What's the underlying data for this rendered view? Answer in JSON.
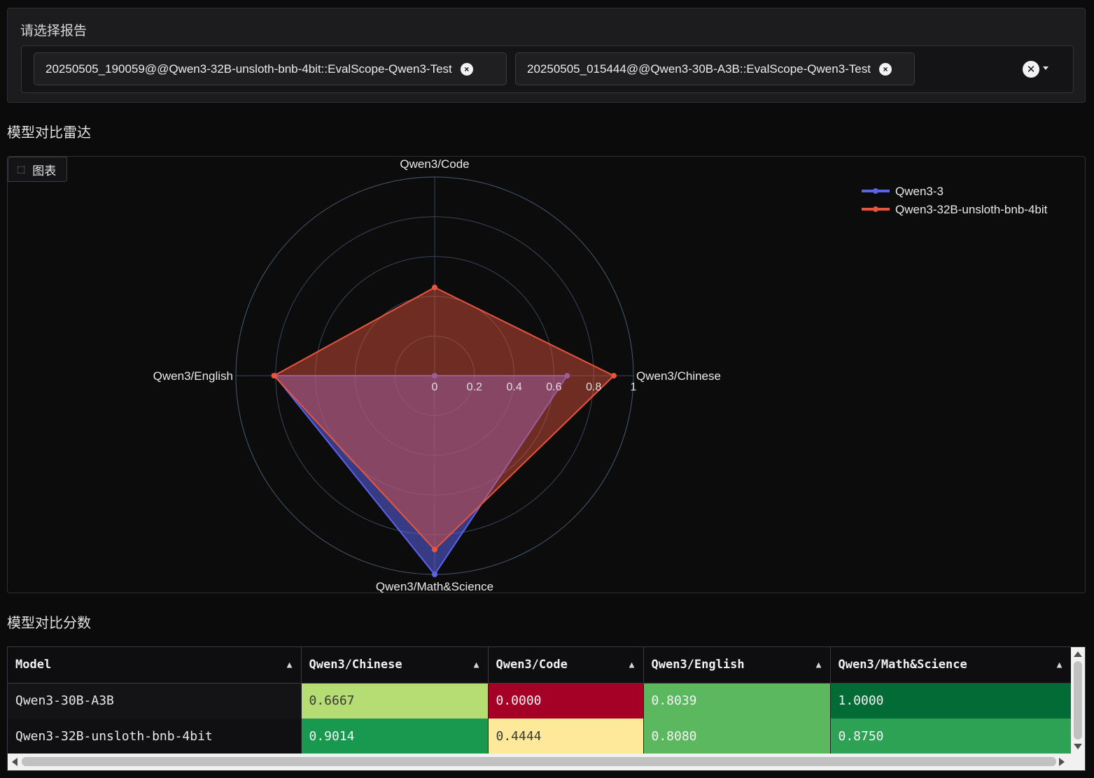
{
  "report_selector": {
    "label": "请选择报告",
    "selected": [
      "20250505_190059@@Qwen3-32B-unsloth-bnb-4bit::EvalScope-Qwen3-Test",
      "20250505_015444@@Qwen3-30B-A3B::EvalScope-Qwen3-Test"
    ],
    "remove_glyph": "×",
    "clear_glyph": "✕"
  },
  "radar_section": {
    "title": "模型对比雷达",
    "tab_label": "图表",
    "tab_icon": "chart-icon"
  },
  "table_section": {
    "title": "模型对比分数",
    "sort_glyph": "▲"
  },
  "chart_data": {
    "type": "radar",
    "axes": [
      "Qwen3/Chinese",
      "Qwen3/Code",
      "Qwen3/English",
      "Qwen3/Math&Science"
    ],
    "radial_range": [
      0,
      1
    ],
    "radial_ticks": [
      "0",
      "0.2",
      "0.4",
      "0.6",
      "0.8",
      "1"
    ],
    "series": [
      {
        "name": "Qwen3-30B-A3B",
        "legend_label": "Qwen3-3",
        "color": "#5b63e8",
        "values": [
          0.6667,
          0.0,
          0.8039,
          1.0
        ]
      },
      {
        "name": "Qwen3-32B-unsloth-bnb-4bit",
        "legend_label": "Qwen3-32B-unsloth-bnb-4bit",
        "color": "#e8543c",
        "values": [
          0.9014,
          0.4444,
          0.808,
          0.875
        ]
      }
    ],
    "legend_position": "top-right"
  },
  "table": {
    "columns": [
      "Model",
      "Qwen3/Chinese",
      "Qwen3/Code",
      "Qwen3/English",
      "Qwen3/Math&Science"
    ],
    "rows": [
      {
        "model": "Qwen3-30B-A3B",
        "scores": [
          "0.6667",
          "0.0000",
          "0.8039",
          "1.0000"
        ],
        "colors": [
          "#b5dd73",
          "#a50026",
          "#5cb85f",
          "#036b36"
        ]
      },
      {
        "model": "Qwen3-32B-unsloth-bnb-4bit",
        "scores": [
          "0.9014",
          "0.4444",
          "0.8080",
          "0.8750"
        ],
        "colors": [
          "#199850",
          "#fee99a",
          "#5cb85f",
          "#2da255"
        ]
      }
    ]
  }
}
